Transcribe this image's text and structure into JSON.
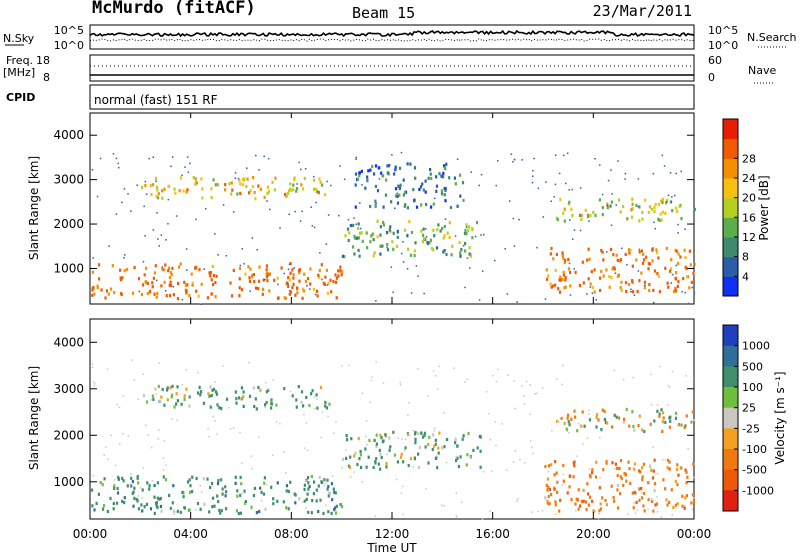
{
  "header": {
    "station": "McMurdo (fitACF)",
    "beam": "Beam 15",
    "date": "23/Mar/2011"
  },
  "noise_panel": {
    "left_label": "N.Sky",
    "right_label": "N.Search",
    "left_ticks": [
      "10^5",
      "10^0"
    ],
    "right_ticks": [
      "10^5",
      "10^0"
    ]
  },
  "freq_panel": {
    "left_label_line1": "Freq.",
    "left_label_line2": "[MHz]",
    "right_label": "Nave",
    "left_ticks": [
      "18",
      "8"
    ],
    "right_ticks": [
      "60",
      "0"
    ]
  },
  "cpid_panel": {
    "label": "CPID",
    "mode_text": "normal (fast) 151 RF"
  },
  "x_axis": {
    "label": "Time UT",
    "ticks": [
      "00:00",
      "04:00",
      "08:00",
      "12:00",
      "16:00",
      "20:00",
      "00:00"
    ]
  },
  "chart_data": [
    {
      "type": "heatmap",
      "quantity": "Power",
      "xlabel": "Time UT",
      "ylabel": "Slant Range [km]",
      "yticks": [
        "1000",
        "2000",
        "3000",
        "4000"
      ],
      "ylim": [
        200,
        4500
      ],
      "xlim": [
        0,
        24
      ],
      "colorbar": {
        "label": "Power [dB]",
        "ticks": [
          "4",
          "8",
          "12",
          "16",
          "20",
          "24",
          "28"
        ],
        "colors": [
          "#1230f5",
          "#2a5ea8",
          "#3e8a6c",
          "#5cae4a",
          "#b5d020",
          "#f5c010",
          "#f49000",
          "#f25a00",
          "#e81e00"
        ]
      },
      "bands": [
        {
          "t": [
            0,
            10
          ],
          "r": [
            350,
            1150
          ],
          "value": 30
        },
        {
          "t": [
            10,
            15.5
          ],
          "r": [
            1300,
            2100
          ],
          "value": 14
        },
        {
          "t": [
            2,
            9.5
          ],
          "r": [
            2600,
            3100
          ],
          "value": 22
        },
        {
          "t": [
            10.5,
            14.8
          ],
          "r": [
            2400,
            3400
          ],
          "value": 8
        },
        {
          "t": [
            18,
            24
          ],
          "r": [
            500,
            1500
          ],
          "value": 30
        },
        {
          "t": [
            18.5,
            24
          ],
          "r": [
            2100,
            2600
          ],
          "value": 18
        }
      ]
    },
    {
      "type": "heatmap",
      "quantity": "Velocity",
      "xlabel": "Time UT",
      "ylabel": "Slant Range [km]",
      "yticks": [
        "1000",
        "2000",
        "3000",
        "4000"
      ],
      "ylim": [
        200,
        4500
      ],
      "xlim": [
        0,
        24
      ],
      "colorbar": {
        "label": "Velocity [m s⁻¹]",
        "ticks": [
          "1000",
          "500",
          "100",
          "25",
          "-25",
          "-100",
          "-500",
          "-1000"
        ],
        "colors": [
          "#1f3fbf",
          "#2f6f9a",
          "#3f8f6a",
          "#6fbf3f",
          "#c8c8c0",
          "#f2a020",
          "#f07a10",
          "#ec5a08",
          "#e02010"
        ]
      },
      "bands": [
        {
          "t": [
            0,
            10
          ],
          "r": [
            350,
            1150
          ],
          "value": 300
        },
        {
          "t": [
            10,
            15.5
          ],
          "r": [
            1300,
            2100
          ],
          "value": 200
        },
        {
          "t": [
            2,
            9.5
          ],
          "r": [
            2600,
            3100
          ],
          "value": 200
        },
        {
          "t": [
            18,
            24
          ],
          "r": [
            400,
            1500
          ],
          "value": -300
        },
        {
          "t": [
            18.5,
            24
          ],
          "r": [
            2100,
            2600
          ],
          "value": 0
        }
      ]
    }
  ]
}
